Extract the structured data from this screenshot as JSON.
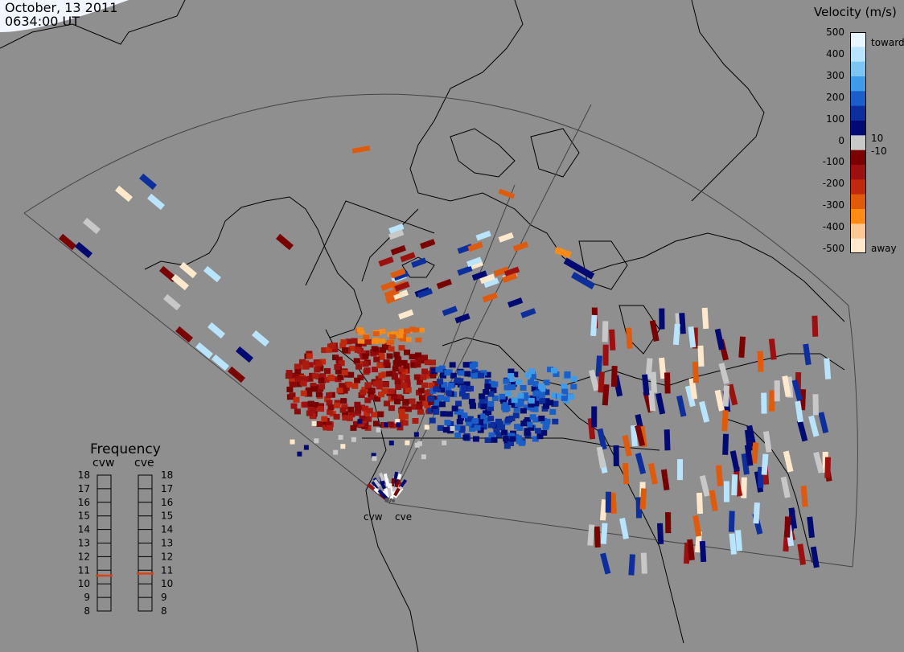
{
  "header": {
    "date": "October, 13 2011",
    "time": "0634:00 UT"
  },
  "colorbar": {
    "title": "Velocity (m/s)",
    "ticks": [
      "500",
      "400",
      "300",
      "200",
      "100",
      "0",
      "-100",
      "-200",
      "-300",
      "-400",
      "-500"
    ],
    "label_10": "10",
    "label_m10": "-10",
    "toward": "toward",
    "away": "away",
    "colors": [
      "#e8f6ff",
      "#b8e4ff",
      "#7cc6f5",
      "#3f9be8",
      "#1a5fc9",
      "#0d2f9e",
      "#000a72",
      "#c8c8c8",
      "#7a0000",
      "#9c1010",
      "#c02a0c",
      "#e05a0c",
      "#ff8a14",
      "#ffc890",
      "#ffe8cc"
    ]
  },
  "frequency": {
    "title": "Frequency",
    "radars": [
      "cvw",
      "cve"
    ],
    "levels": [
      "18",
      "17",
      "16",
      "15",
      "14",
      "13",
      "12",
      "11",
      "10",
      "9",
      "8"
    ],
    "cvw_mhz": 10.6,
    "cve_mhz": 10.75
  },
  "stations": {
    "west": "cvw",
    "east": "cve"
  }
}
